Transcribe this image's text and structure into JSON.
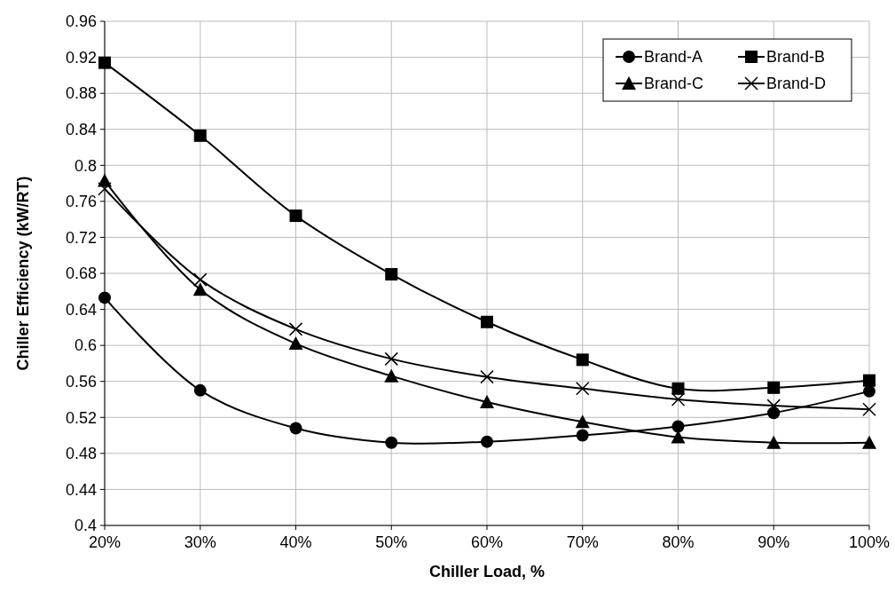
{
  "chart_data": {
    "type": "line",
    "xlabel": "Chiller Load, %",
    "ylabel": "Chiller Efficiency (kW/RT)",
    "categories": [
      "20%",
      "30%",
      "40%",
      "50%",
      "60%",
      "70%",
      "80%",
      "90%",
      "100%"
    ],
    "series": [
      {
        "name": "Brand-A",
        "color": "#000000",
        "marker": "circle",
        "values": [
          0.653,
          0.55,
          0.508,
          0.492,
          0.493,
          0.5,
          0.51,
          0.525,
          0.549
        ]
      },
      {
        "name": "Brand-B",
        "color": "#000000",
        "marker": "square",
        "values": [
          0.914,
          0.833,
          0.744,
          0.679,
          0.626,
          0.584,
          0.552,
          0.553,
          0.561
        ]
      },
      {
        "name": "Brand-C",
        "color": "#000000",
        "marker": "triangle",
        "values": [
          0.783,
          0.662,
          0.602,
          0.566,
          0.537,
          0.515,
          0.498,
          0.492,
          0.492
        ]
      },
      {
        "name": "Brand-D",
        "color": "#000000",
        "marker": "cross",
        "values": [
          0.774,
          0.673,
          0.618,
          0.585,
          0.565,
          0.552,
          0.54,
          0.533,
          0.529
        ]
      }
    ],
    "ylim": [
      0.4,
      0.96
    ],
    "yticks": [
      0.4,
      0.44,
      0.48,
      0.52,
      0.56,
      0.6,
      0.64,
      0.68,
      0.72,
      0.76,
      0.8,
      0.84,
      0.88,
      0.92,
      0.96
    ],
    "grid": true,
    "legend": "top right",
    "line_style": "solid"
  }
}
